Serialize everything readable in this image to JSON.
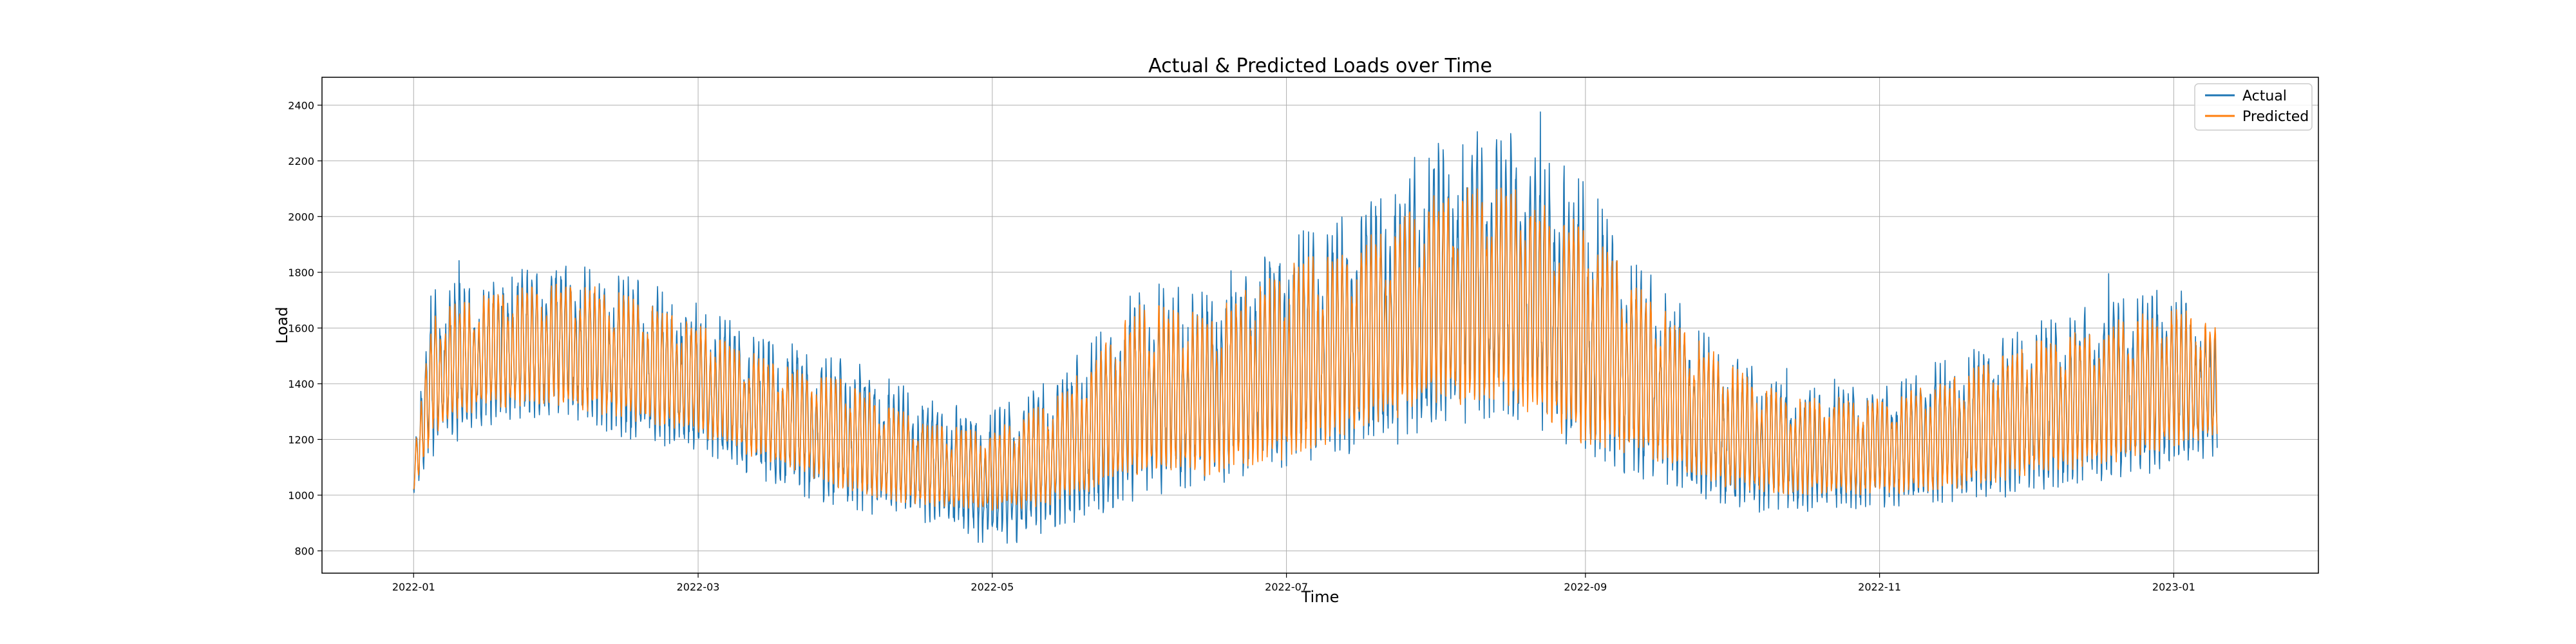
{
  "chart_data": {
    "type": "line",
    "title": "Actual & Predicted Loads over Time",
    "xlabel": "Time",
    "ylabel": "Load",
    "x_range": [
      "2021-12-13",
      "2023-01-31"
    ],
    "ylim": [
      720,
      2500
    ],
    "x_ticks": [
      "2022-01",
      "2022-03",
      "2022-05",
      "2022-07",
      "2022-09",
      "2022-11",
      "2023-01"
    ],
    "y_ticks": [
      800,
      1000,
      1200,
      1400,
      1600,
      1800,
      2000,
      2200,
      2400
    ],
    "grid": true,
    "legend_position": "top-right",
    "x_start": "2022-01-01",
    "x_end": "2023-01-10",
    "series": [
      {
        "name": "Actual",
        "color": "#1f77b4",
        "level_points": [
          {
            "x": "2022-01-01",
            "low": 1000,
            "high": 1150
          },
          {
            "x": "2022-01-05",
            "low": 1150,
            "high": 1800
          },
          {
            "x": "2022-01-15",
            "low": 1250,
            "high": 1780
          },
          {
            "x": "2022-02-01",
            "low": 1300,
            "high": 1880
          },
          {
            "x": "2022-02-15",
            "low": 1200,
            "high": 1800
          },
          {
            "x": "2022-03-01",
            "low": 1150,
            "high": 1700
          },
          {
            "x": "2022-03-15",
            "low": 1050,
            "high": 1580
          },
          {
            "x": "2022-04-01",
            "low": 950,
            "high": 1520
          },
          {
            "x": "2022-04-15",
            "low": 920,
            "high": 1380
          },
          {
            "x": "2022-05-01",
            "low": 820,
            "high": 1320
          },
          {
            "x": "2022-05-15",
            "low": 880,
            "high": 1450
          },
          {
            "x": "2022-06-01",
            "low": 1000,
            "high": 1780
          },
          {
            "x": "2022-06-15",
            "low": 1050,
            "high": 1750
          },
          {
            "x": "2022-07-01",
            "low": 1100,
            "high": 1950
          },
          {
            "x": "2022-07-15",
            "low": 1150,
            "high": 2050
          },
          {
            "x": "2022-08-01",
            "low": 1250,
            "high": 2300
          },
          {
            "x": "2022-08-15",
            "low": 1300,
            "high": 2350
          },
          {
            "x": "2022-09-01",
            "low": 1150,
            "high": 2150
          },
          {
            "x": "2022-09-15",
            "low": 1050,
            "high": 1800
          },
          {
            "x": "2022-10-01",
            "low": 950,
            "high": 1520
          },
          {
            "x": "2022-10-15",
            "low": 950,
            "high": 1400
          },
          {
            "x": "2022-11-01",
            "low": 960,
            "high": 1420
          },
          {
            "x": "2022-11-15",
            "low": 980,
            "high": 1500
          },
          {
            "x": "2022-12-01",
            "low": 1000,
            "high": 1620
          },
          {
            "x": "2022-12-15",
            "low": 1050,
            "high": 1700
          },
          {
            "x": "2023-01-01",
            "low": 1100,
            "high": 1780
          },
          {
            "x": "2023-01-10",
            "low": 1150,
            "high": 1600
          }
        ]
      },
      {
        "name": "Predicted",
        "color": "#ff7f0e",
        "level_points": [
          {
            "x": "2022-01-01",
            "low": 1000,
            "high": 1150
          },
          {
            "x": "2022-01-05",
            "low": 1200,
            "high": 1700
          },
          {
            "x": "2022-01-15",
            "low": 1300,
            "high": 1750
          },
          {
            "x": "2022-02-01",
            "low": 1300,
            "high": 1820
          },
          {
            "x": "2022-02-15",
            "low": 1250,
            "high": 1750
          },
          {
            "x": "2022-03-01",
            "low": 1200,
            "high": 1650
          },
          {
            "x": "2022-03-15",
            "low": 1100,
            "high": 1520
          },
          {
            "x": "2022-04-01",
            "low": 1000,
            "high": 1450
          },
          {
            "x": "2022-04-15",
            "low": 950,
            "high": 1300
          },
          {
            "x": "2022-05-01",
            "low": 930,
            "high": 1250
          },
          {
            "x": "2022-05-15",
            "low": 950,
            "high": 1400
          },
          {
            "x": "2022-06-01",
            "low": 1050,
            "high": 1750
          },
          {
            "x": "2022-06-15",
            "low": 1050,
            "high": 1700
          },
          {
            "x": "2022-07-01",
            "low": 1100,
            "high": 1900
          },
          {
            "x": "2022-07-15",
            "low": 1200,
            "high": 1950
          },
          {
            "x": "2022-08-01",
            "low": 1300,
            "high": 2150
          },
          {
            "x": "2022-08-15",
            "low": 1300,
            "high": 2200
          },
          {
            "x": "2022-09-01",
            "low": 1150,
            "high": 2050
          },
          {
            "x": "2022-09-15",
            "low": 1100,
            "high": 1750
          },
          {
            "x": "2022-10-01",
            "low": 1000,
            "high": 1500
          },
          {
            "x": "2022-10-15",
            "low": 990,
            "high": 1380
          },
          {
            "x": "2022-11-01",
            "low": 990,
            "high": 1380
          },
          {
            "x": "2022-11-15",
            "low": 1000,
            "high": 1450
          },
          {
            "x": "2022-12-01",
            "low": 1050,
            "high": 1580
          },
          {
            "x": "2022-12-15",
            "low": 1080,
            "high": 1650
          },
          {
            "x": "2023-01-01",
            "low": 1150,
            "high": 1720
          },
          {
            "x": "2023-01-10",
            "low": 1200,
            "high": 1650
          }
        ]
      }
    ]
  }
}
